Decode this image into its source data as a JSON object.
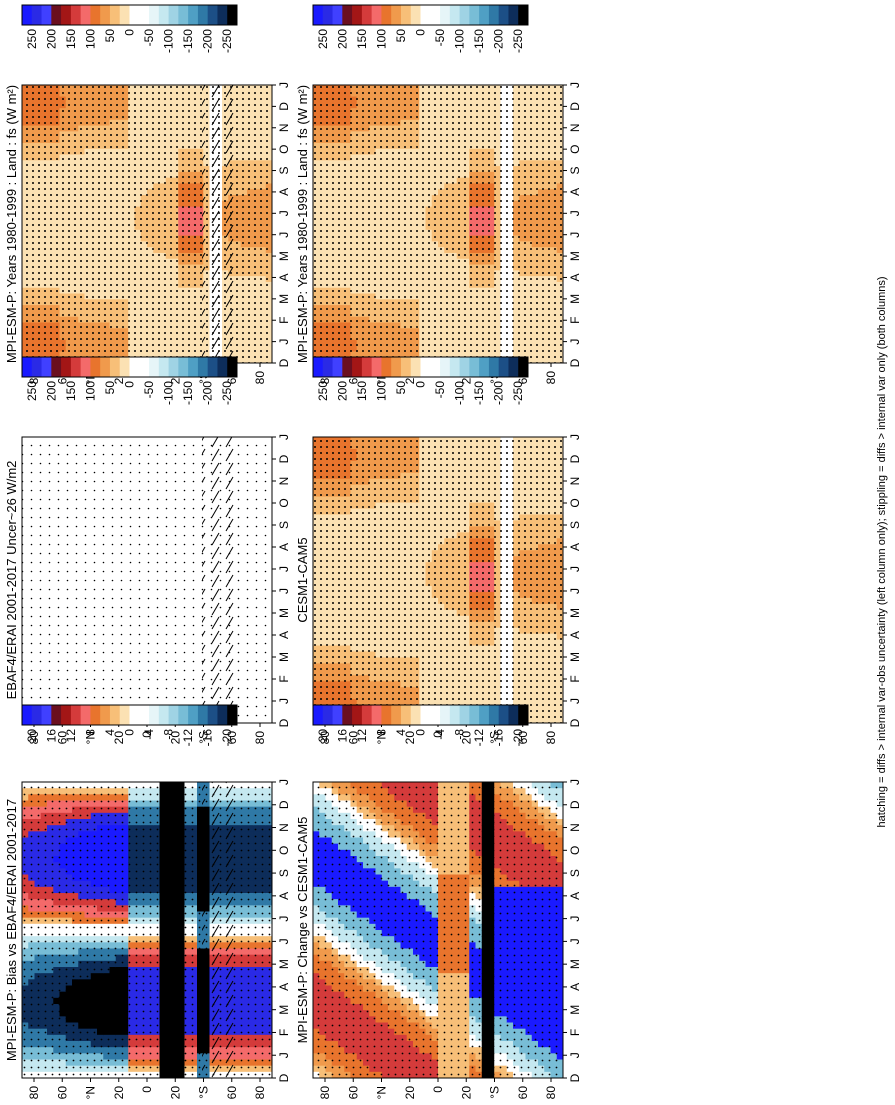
{
  "footnote": "hatching = diffs > internal var-obs uncertainty (left column only); stippling = diffs > internal var only (both columns)",
  "chart_data": [
    {
      "id": "p1",
      "type": "heatmap",
      "title": "MPI-ESM-P: Years 1980-1999 : Land : fs (W m²)",
      "field": "base",
      "x_ticks": [
        "D",
        "J",
        "F",
        "M",
        "A",
        "M",
        "J",
        "J",
        "A",
        "S",
        "O",
        "N",
        "D",
        "J"
      ],
      "y_ticks": [
        "80",
        "60",
        "°N",
        "20",
        "0",
        "20",
        "°S",
        "60",
        "80"
      ],
      "colorbar_labels": [
        "250",
        "200",
        "150",
        "100",
        "50",
        "0",
        "-50",
        "-100",
        "-150",
        "-200",
        "-250"
      ],
      "hatching": true,
      "stippling": "dense"
    },
    {
      "id": "p2",
      "type": "heatmap",
      "title": "MPI-ESM-P: Years 1980-1999 : Land : fs (W m²)",
      "field": "base",
      "x_ticks": [
        "D",
        "J",
        "F",
        "M",
        "A",
        "M",
        "J",
        "J",
        "A",
        "S",
        "O",
        "N",
        "D",
        "J"
      ],
      "y_ticks": [
        "80",
        "60",
        "°N",
        "20",
        "0",
        "20",
        "°S",
        "60",
        "80"
      ],
      "colorbar_labels": [
        "250",
        "200",
        "150",
        "100",
        "50",
        "0",
        "-50",
        "-100",
        "-150",
        "-200",
        "-250"
      ],
      "hatching": false,
      "stippling": "dense"
    },
    {
      "id": "p3",
      "type": "heatmap",
      "title": "EBAF4/ERAI 2001-2017 Uncer~26 W/m2",
      "field": "uncertainty",
      "x_ticks": [
        "D",
        "J",
        "F",
        "M",
        "A",
        "M",
        "J",
        "J",
        "A",
        "S",
        "O",
        "N",
        "D",
        "J"
      ],
      "y_ticks": [
        "80",
        "60",
        "°N",
        "20",
        "0",
        "20",
        "°S",
        "60",
        "80"
      ],
      "colorbar_labels": [
        "250",
        "200",
        "150",
        "100",
        "50",
        "0",
        "-50",
        "-100",
        "-150",
        "-200",
        "-250"
      ],
      "hatching": true,
      "stippling": "sparse"
    },
    {
      "id": "p4",
      "type": "heatmap",
      "title": "CESM1-CAM5",
      "field": "base",
      "x_ticks": [
        "D",
        "J",
        "F",
        "M",
        "A",
        "M",
        "J",
        "J",
        "A",
        "S",
        "O",
        "N",
        "D",
        "J"
      ],
      "y_ticks": [
        "80",
        "60",
        "°N",
        "20",
        "0",
        "20",
        "°S",
        "60",
        "80"
      ],
      "colorbar_labels": [
        "250",
        "200",
        "150",
        "100",
        "50",
        "0",
        "-50",
        "-100",
        "-150",
        "-200",
        "-250"
      ],
      "hatching": false,
      "stippling": "dense"
    },
    {
      "id": "p5",
      "type": "heatmap",
      "title": "MPI-ESM-P: Bias vs EBAF4/ERAI 2001-2017",
      "field": "bias",
      "x_ticks": [
        "D",
        "J",
        "F",
        "M",
        "A",
        "M",
        "J",
        "J",
        "A",
        "S",
        "O",
        "N",
        "D",
        "J"
      ],
      "y_ticks": [
        "80",
        "60",
        "°N",
        "20",
        "0",
        "20",
        "°S",
        "60",
        "80"
      ],
      "colorbar_labels": [
        "20",
        "16",
        "12",
        "8",
        "4",
        "0",
        "-4",
        "-8",
        "-12",
        "-16",
        "-20"
      ],
      "hatching": true,
      "stippling": "medium"
    },
    {
      "id": "p6",
      "type": "heatmap",
      "title": "MPI-ESM-P: Change vs CESM1-CAM5",
      "field": "change",
      "x_ticks": [
        "D",
        "J",
        "F",
        "M",
        "A",
        "M",
        "J",
        "J",
        "A",
        "S",
        "O",
        "N",
        "D",
        "J"
      ],
      "y_ticks": [
        "80",
        "60",
        "°N",
        "20",
        "0",
        "20",
        "°S",
        "60",
        "80"
      ],
      "colorbar_labels": [
        "20",
        "16",
        "12",
        "8",
        "4",
        "0",
        "-4",
        "-8",
        "-12",
        "-16",
        "-20"
      ],
      "hatching": false,
      "stippling": "medium"
    }
  ],
  "colors": {
    "colorbar": [
      "#1a1aff",
      "#2a2ae6",
      "#4040ff",
      "#6a0f1f",
      "#a31616",
      "#d43b3b",
      "#f46a6a",
      "#e8742d",
      "#f09a4c",
      "#f7bf78",
      "#fbe1b3",
      "#ffffff",
      "#ffffff",
      "#e6f5f8",
      "#c5e8f0",
      "#9fd3e4",
      "#78bdd6",
      "#4f9fc4",
      "#2f79a6",
      "#1c4f86",
      "#0d2d5a",
      "#000000"
    ]
  }
}
